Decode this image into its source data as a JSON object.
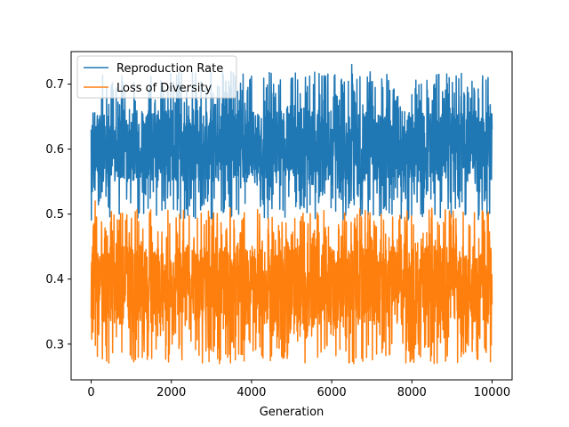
{
  "chart_data": {
    "type": "line",
    "title": "",
    "xlabel": "Generation",
    "ylabel": "",
    "xlim": [
      -500,
      10500
    ],
    "ylim": [
      0.245,
      0.75
    ],
    "xticks": [
      0,
      2000,
      4000,
      6000,
      8000,
      10000
    ],
    "xtick_labels": [
      "0",
      "2000",
      "4000",
      "6000",
      "8000",
      "10000"
    ],
    "yticks": [
      0.3,
      0.4,
      0.5,
      0.6,
      0.7
    ],
    "ytick_labels": [
      "0.3",
      "0.4",
      "0.5",
      "0.6",
      "0.7"
    ],
    "grid": false,
    "legend_position": "top-left",
    "n_generations": 10001,
    "series": [
      {
        "name": "Reproduction Rate",
        "color": "#1f77b4",
        "typical_range": [
          0.55,
          0.66
        ],
        "min": 0.49,
        "max": 0.73,
        "mean": 0.605,
        "notable_points": [
          {
            "x": 0,
            "y": 0.63
          },
          {
            "x": 200,
            "y": 0.52
          },
          {
            "x": 700,
            "y": 0.5
          },
          {
            "x": 6500,
            "y": 0.73
          },
          {
            "x": 9900,
            "y": 0.71
          }
        ]
      },
      {
        "name": "Loss of Diversity",
        "color": "#ff7f0e",
        "typical_range": [
          0.33,
          0.45
        ],
        "min": 0.27,
        "max": 0.52,
        "mean": 0.39,
        "notable_points": [
          {
            "x": 0,
            "y": 0.34
          },
          {
            "x": 100,
            "y": 0.52
          },
          {
            "x": 3200,
            "y": 0.27
          },
          {
            "x": 4200,
            "y": 0.5
          },
          {
            "x": 6550,
            "y": 0.27
          }
        ]
      }
    ]
  }
}
